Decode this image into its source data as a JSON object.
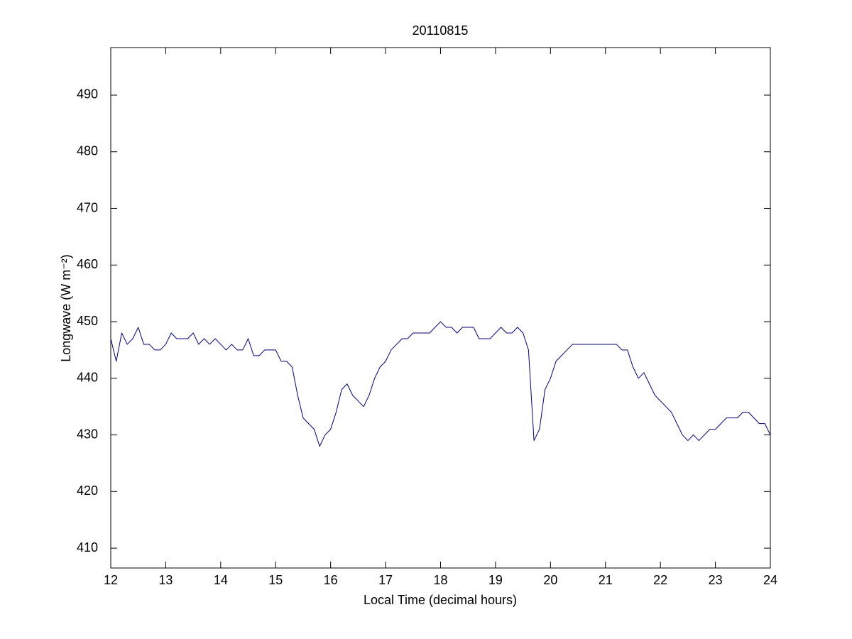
{
  "chart_data": {
    "type": "line",
    "title": "20110815",
    "x_label": "Local Time (decimal hours)",
    "y_label": "Longwave (W m⁻²)",
    "xlim": [
      12,
      24
    ],
    "ylim": [
      406.5,
      498.4
    ],
    "xticks": [
      12,
      13,
      14,
      15,
      16,
      17,
      18,
      19,
      20,
      21,
      22,
      23,
      24
    ],
    "yticks": [
      410,
      420,
      430,
      440,
      450,
      460,
      470,
      480,
      490
    ],
    "x": [
      12.0,
      12.1,
      12.2,
      12.3,
      12.4,
      12.5,
      12.6,
      12.7,
      12.8,
      12.9,
      13.0,
      13.1,
      13.2,
      13.3,
      13.4,
      13.5,
      13.6,
      13.7,
      13.8,
      13.9,
      14.0,
      14.1,
      14.2,
      14.3,
      14.4,
      14.5,
      14.6,
      14.7,
      14.8,
      14.9,
      15.0,
      15.1,
      15.2,
      15.3,
      15.4,
      15.5,
      15.6,
      15.7,
      15.8,
      15.9,
      16.0,
      16.1,
      16.2,
      16.3,
      16.4,
      16.5,
      16.6,
      16.7,
      16.8,
      16.9,
      17.0,
      17.1,
      17.2,
      17.3,
      17.4,
      17.5,
      17.6,
      17.7,
      17.8,
      17.9,
      18.0,
      18.1,
      18.2,
      18.3,
      18.4,
      18.5,
      18.6,
      18.7,
      18.8,
      18.9,
      19.0,
      19.1,
      19.2,
      19.3,
      19.4,
      19.5,
      19.6,
      19.7,
      19.8,
      19.9,
      20.0,
      20.1,
      20.2,
      20.3,
      20.4,
      20.5,
      20.6,
      20.7,
      20.8,
      20.9,
      21.0,
      21.1,
      21.2,
      21.3,
      21.4,
      21.5,
      21.6,
      21.7,
      21.8,
      21.9,
      22.0,
      22.1,
      22.2,
      22.3,
      22.4,
      22.5,
      22.6,
      22.7,
      22.8,
      22.9,
      23.0,
      23.1,
      23.2,
      23.3,
      23.4,
      23.5,
      23.6,
      23.7,
      23.8,
      23.9,
      24.0
    ],
    "series": [
      {
        "name": "Longwave",
        "color": "#000080",
        "values": [
          447,
          443,
          448,
          446,
          447,
          449,
          446,
          446,
          445,
          445,
          446,
          448,
          447,
          447,
          447,
          448,
          446,
          447,
          446,
          447,
          446,
          445,
          446,
          445,
          445,
          447,
          444,
          444,
          445,
          445,
          445,
          443,
          443,
          442,
          437,
          433,
          432,
          431,
          428,
          430,
          431,
          434,
          438,
          439,
          437,
          436,
          435,
          437,
          440,
          442,
          443,
          445,
          446,
          447,
          447,
          448,
          448,
          448,
          448,
          449,
          450,
          449,
          449,
          448,
          449,
          449,
          449,
          447,
          447,
          447,
          448,
          449,
          448,
          448,
          449,
          448,
          445,
          429,
          431,
          438,
          440,
          443,
          444,
          445,
          446,
          446,
          446,
          446,
          446,
          446,
          446,
          446,
          446,
          445,
          445,
          442,
          440,
          441,
          439,
          437,
          436,
          435,
          434,
          432,
          430,
          429,
          430,
          429,
          430,
          431,
          431,
          432,
          433,
          433,
          433,
          434,
          434,
          433,
          432,
          432,
          430
        ]
      }
    ],
    "grid": false
  }
}
